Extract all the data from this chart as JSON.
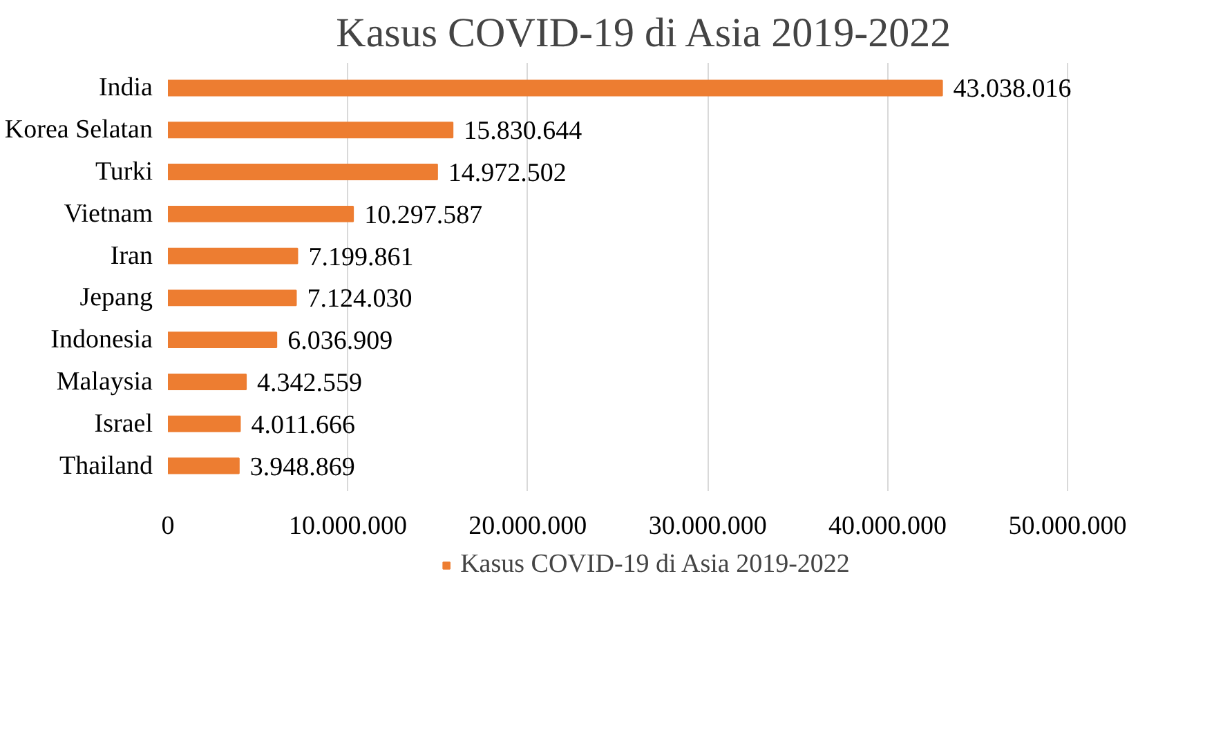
{
  "chart_data": {
    "type": "bar",
    "orientation": "horizontal",
    "title": "Kasus COVID-19 di Asia 2019-2022",
    "categories": [
      "India",
      "Korea Selatan",
      "Turki",
      "Vietnam",
      "Iran",
      "Jepang",
      "Indonesia",
      "Malaysia",
      "Israel",
      "Thailand"
    ],
    "series": [
      {
        "name": "Kasus COVID-19 di Asia 2019-2022",
        "color": "#ed7d31",
        "values": [
          43038016,
          15830644,
          14972502,
          10297587,
          7199861,
          7124030,
          6036909,
          4342559,
          4011666,
          3948869
        ],
        "value_labels": [
          "43.038.016",
          "15.830.644",
          "14.972.502",
          "10.297.587",
          "7.199.861",
          "7.124.030",
          "6.036.909",
          "4.342.559",
          "4.011.666",
          "3.948.869"
        ]
      }
    ],
    "xlim": [
      0,
      50000000
    ],
    "xticks": [
      0,
      {
        "value": 10000000,
        "label": "10.000.000"
      },
      {
        "value": 20000000,
        "label": "20.000.000"
      },
      {
        "value": 30000000,
        "label": "30.000.000"
      },
      {
        "value": 40000000,
        "label": "40.000.000"
      },
      {
        "value": 50000000,
        "label": "50.000.000"
      }
    ],
    "grid": "x",
    "legend": "bottom"
  }
}
